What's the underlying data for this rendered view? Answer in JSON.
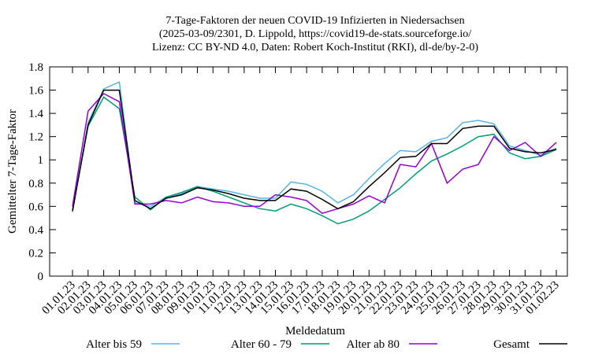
{
  "chart_data": {
    "type": "line",
    "title": "7-Tage-Faktoren der neuen COVID-19 Infizierten in Niedersachsen",
    "subtitle": [
      "(2025-03-09/2301, D. Lippold, https://covid19-de-stats.sourceforge.io/",
      "Lizenz: CC BY-ND 4.0, Daten: Robert Koch-Institut (RKI), dl-de/by-2-0)"
    ],
    "x_label": "Meldedatum",
    "y_label": "Gemittelter 7-Tage-Faktor",
    "categories": [
      "01.01.23",
      "02.01.23",
      "03.01.23",
      "04.01.23",
      "05.01.23",
      "06.01.23",
      "07.01.23",
      "08.01.23",
      "09.01.23",
      "10.01.23",
      "11.01.23",
      "12.01.23",
      "13.01.23",
      "14.01.23",
      "15.01.23",
      "16.01.23",
      "17.01.23",
      "18.01.23",
      "19.01.23",
      "20.01.23",
      "21.01.23",
      "22.01.23",
      "23.01.23",
      "24.01.23",
      "25.01.23",
      "26.01.23",
      "27.01.23",
      "28.01.23",
      "29.01.23",
      "30.01.23",
      "31.01.23",
      "01.02.23"
    ],
    "series": [
      {
        "name": "Alter bis 59",
        "color": "#56b4e9",
        "values": [
          0.55,
          1.32,
          1.61,
          1.67,
          0.63,
          0.6,
          0.68,
          0.71,
          0.77,
          0.75,
          0.73,
          0.7,
          0.67,
          0.67,
          0.81,
          0.79,
          0.73,
          0.63,
          0.7,
          0.84,
          0.97,
          1.08,
          1.07,
          1.16,
          1.19,
          1.32,
          1.34,
          1.31,
          1.12,
          1.08,
          1.04,
          1.1
        ]
      },
      {
        "name": "Alter 60 - 79",
        "color": "#009e73",
        "values": [
          0.57,
          1.29,
          1.54,
          1.44,
          0.68,
          0.57,
          0.68,
          0.72,
          0.77,
          0.73,
          0.68,
          0.63,
          0.58,
          0.56,
          0.62,
          0.58,
          0.52,
          0.45,
          0.49,
          0.56,
          0.66,
          0.76,
          0.88,
          0.99,
          1.05,
          1.12,
          1.2,
          1.22,
          1.06,
          1.01,
          1.03,
          1.09
        ]
      },
      {
        "name": "Alter ab 80",
        "color": "#9400d3",
        "values": [
          0.6,
          1.42,
          1.57,
          1.5,
          0.62,
          0.62,
          0.65,
          0.63,
          0.68,
          0.64,
          0.63,
          0.6,
          0.6,
          0.7,
          0.68,
          0.65,
          0.54,
          0.58,
          0.62,
          0.69,
          0.63,
          0.96,
          0.94,
          1.14,
          0.8,
          0.92,
          0.96,
          1.2,
          1.08,
          1.15,
          1.03,
          1.15
        ]
      },
      {
        "name": "Gesamt",
        "color": "#000000",
        "values": [
          0.56,
          1.3,
          1.6,
          1.6,
          0.65,
          0.58,
          0.67,
          0.7,
          0.76,
          0.74,
          0.71,
          0.67,
          0.65,
          0.65,
          0.75,
          0.73,
          0.66,
          0.58,
          0.64,
          0.77,
          0.89,
          1.02,
          1.03,
          1.14,
          1.14,
          1.27,
          1.29,
          1.29,
          1.1,
          1.07,
          1.06,
          1.09
        ]
      }
    ],
    "ylim": [
      0,
      1.8
    ],
    "yticks": [
      0,
      0.2,
      0.4,
      0.6,
      0.8,
      1,
      1.2,
      1.4,
      1.6,
      1.8
    ],
    "grid": false
  }
}
